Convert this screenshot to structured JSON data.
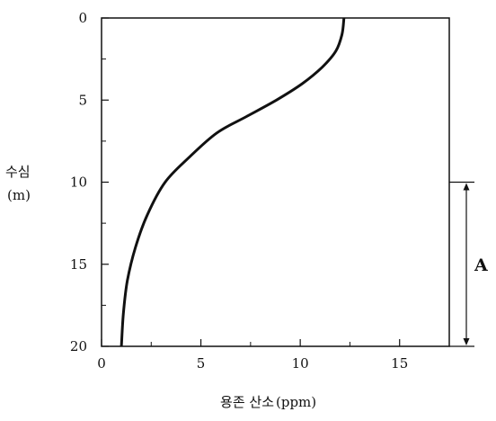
{
  "chart_data": {
    "type": "line",
    "xlabel": "용존 산소",
    "xlabel_unit": "(ppm)",
    "ylabel": "수심",
    "ylabel_unit": "(m)",
    "xlim": [
      0,
      17.5
    ],
    "ylim": [
      0,
      20
    ],
    "y_inverted": true,
    "x_ticks": [
      0,
      5,
      10,
      15
    ],
    "y_ticks": [
      0,
      5,
      10,
      15,
      20
    ],
    "x_minor_ticks": [
      2.5,
      7.5,
      12.5
    ],
    "y_minor_ticks": [
      2.5,
      7.5,
      12.5,
      17.5
    ],
    "grid": false,
    "series": [
      {
        "x": [
          1.0,
          1.1,
          1.3,
          1.7,
          2.3,
          3.2,
          4.4,
          5.8,
          7.3,
          8.8,
          10.1,
          11.1,
          11.8,
          12.1,
          12.2
        ],
        "y": [
          20,
          18,
          16,
          14,
          12,
          10,
          8.5,
          7,
          6,
          5,
          4,
          3,
          2,
          1,
          0
        ]
      }
    ],
    "annotations": [
      {
        "label": "A",
        "type": "depth-range",
        "y_range": [
          10,
          20
        ]
      }
    ]
  }
}
